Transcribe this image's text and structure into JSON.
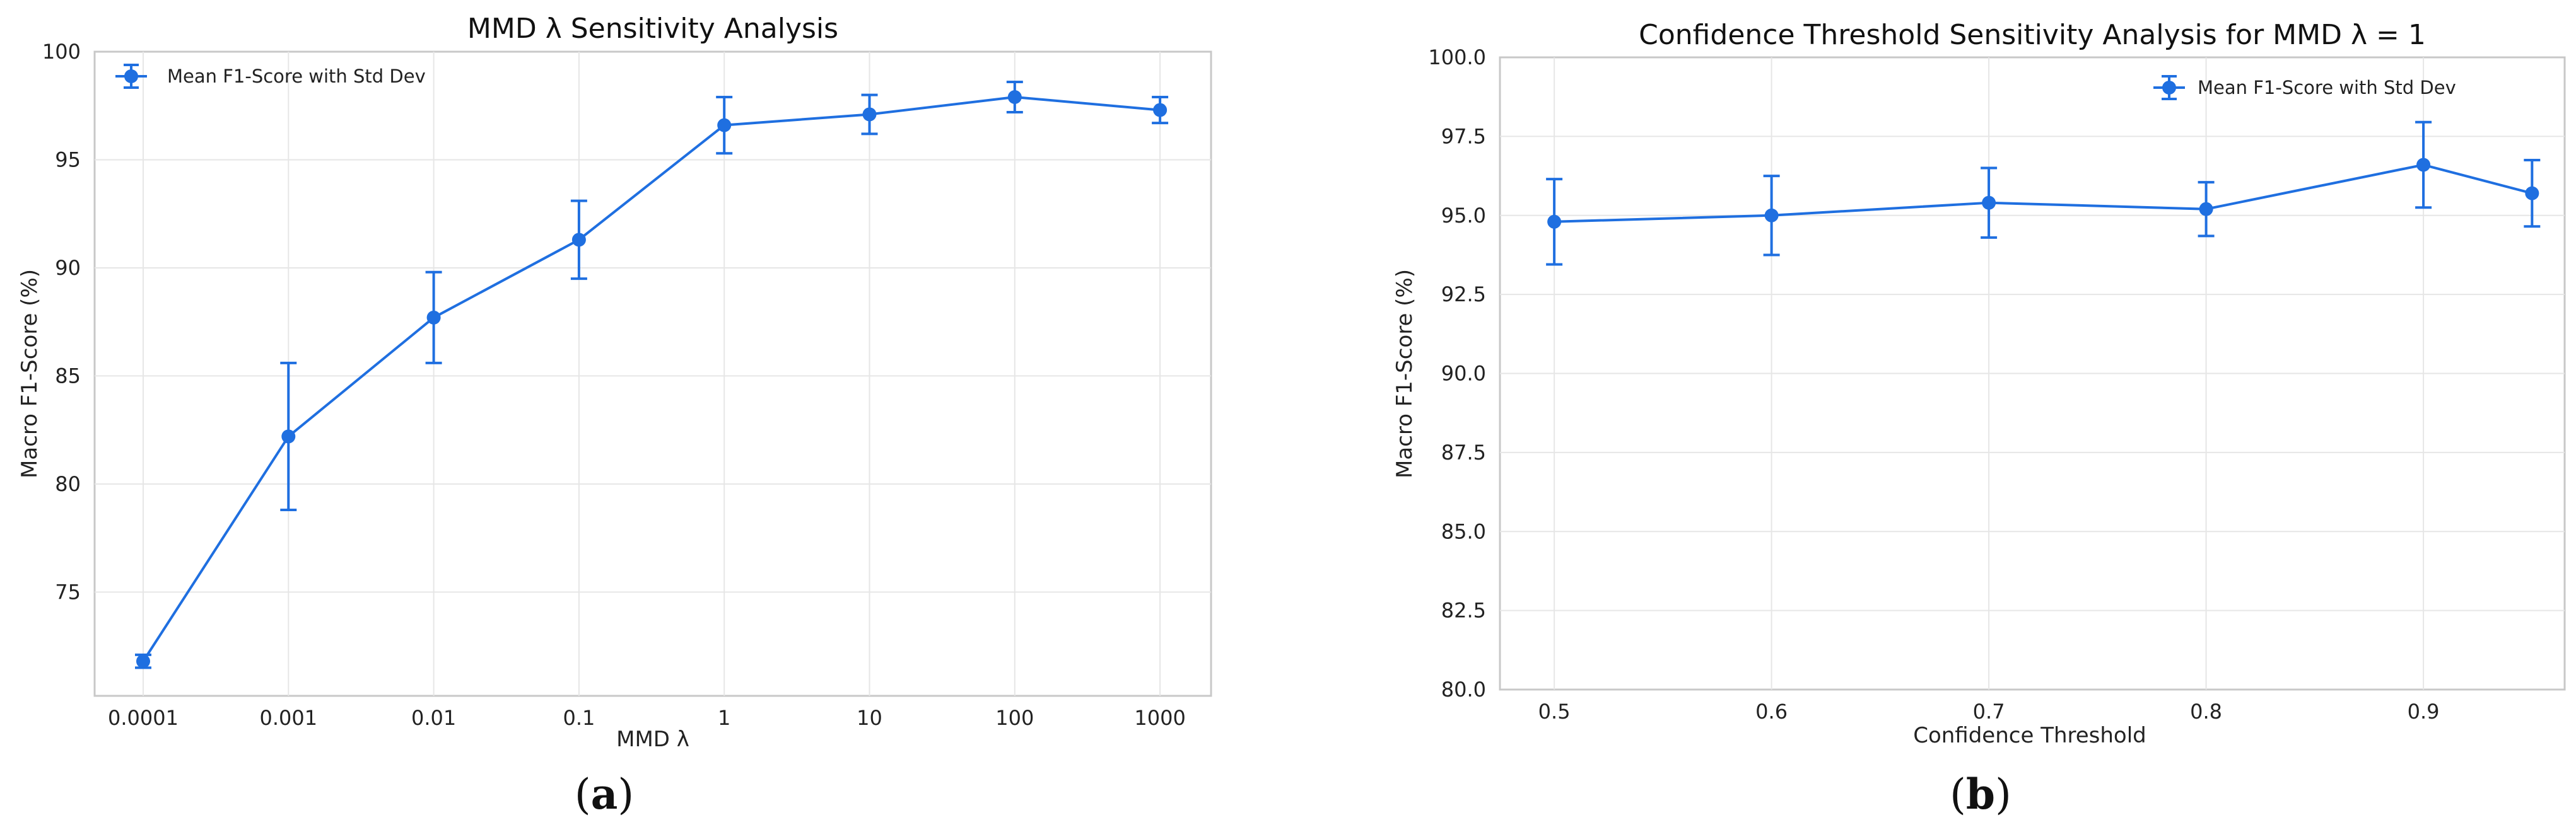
{
  "chart_data": [
    {
      "type": "line",
      "panel_label": "a",
      "title": "MMD λ Sensitivity Analysis",
      "xlabel": "MMD λ",
      "ylabel": "Macro F1-Score (%)",
      "categories": [
        "0.0001",
        "0.001",
        "0.01",
        "0.1",
        "1",
        "10",
        "100",
        "1000"
      ],
      "series": [
        {
          "name": "Mean F1-Score with Std Dev",
          "values": [
            71.8,
            82.2,
            87.7,
            91.3,
            96.6,
            97.1,
            97.9,
            97.3
          ],
          "error": [
            0.3,
            3.4,
            2.1,
            1.8,
            1.3,
            0.9,
            0.7,
            0.6
          ]
        }
      ],
      "ylim": [
        70.2,
        100
      ],
      "yticks": [
        "75",
        "80",
        "85",
        "90",
        "95",
        "100"
      ],
      "ytick_values": [
        75,
        80,
        85,
        90,
        95,
        100
      ],
      "grid": true,
      "legend_position": "top-left",
      "color": "#1f6fe0"
    },
    {
      "type": "line",
      "panel_label": "b",
      "title": "Confidence Threshold Sensitivity Analysis for MMD λ = 1",
      "xlabel": "Confidence Threshold",
      "ylabel": "Macro F1-Score (%)",
      "x": [
        0.5,
        0.6,
        0.7,
        0.8,
        0.9,
        0.95
      ],
      "xticks": [
        "0.5",
        "0.6",
        "0.7",
        "0.8",
        "0.9"
      ],
      "xtick_values": [
        0.5,
        0.6,
        0.7,
        0.8,
        0.9
      ],
      "series": [
        {
          "name": "Mean F1-Score with Std Dev",
          "values": [
            94.8,
            95.0,
            95.4,
            95.2,
            96.6,
            95.7
          ],
          "error": [
            1.35,
            1.25,
            1.1,
            0.85,
            1.35,
            1.05
          ]
        }
      ],
      "xlim": [
        0.475,
        0.965
      ],
      "ylim": [
        80,
        100
      ],
      "yticks": [
        "80.0",
        "82.5",
        "85.0",
        "87.5",
        "90.0",
        "92.5",
        "95.0",
        "97.5",
        "100.0"
      ],
      "ytick_values": [
        80,
        82.5,
        85,
        87.5,
        90,
        92.5,
        95,
        97.5,
        100
      ],
      "grid": true,
      "legend_position": "top-right",
      "color": "#1f6fe0"
    }
  ]
}
